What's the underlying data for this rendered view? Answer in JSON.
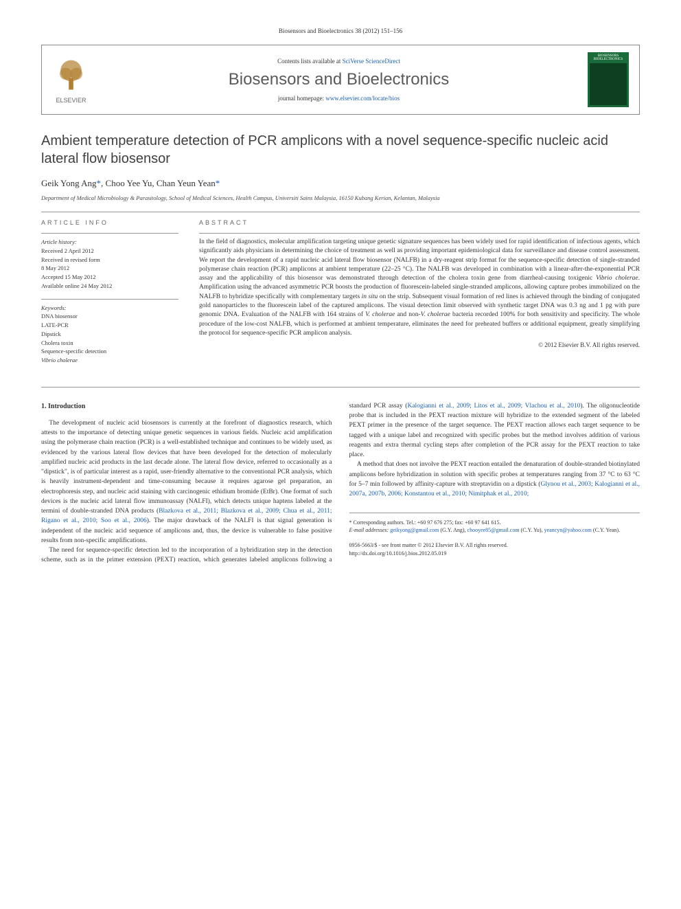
{
  "journal_header": "Biosensors and Bioelectronics 38 (2012) 151–156",
  "header_box": {
    "contents_line_prefix": "Contents lists available at ",
    "contents_link": "SciVerse ScienceDirect",
    "journal_title": "Biosensors and Bioelectronics",
    "homepage_prefix": "journal homepage: ",
    "homepage_link": "www.elsevier.com/locate/bios",
    "elsevier_label": "ELSEVIER",
    "cover_title": "BIOSENSORS BIOELECTRONICS"
  },
  "article": {
    "title": "Ambient temperature detection of PCR amplicons with a novel sequence-specific nucleic acid lateral flow biosensor",
    "authors_html": "Geik Yong Ang<span class='star'>*</span>, Choo Yee Yu, Chan Yeun Yean<span class='star'>*</span>",
    "affiliation": "Department of Medical Microbiology & Parasitology, School of Medical Sciences, Health Campus, Universiti Sains Malaysia, 16150 Kubang Kerian, Kelantan, Malaysia"
  },
  "info": {
    "heading": "ARTICLE INFO",
    "history_label": "Article history:",
    "history": [
      "Received 2 April 2012",
      "Received in revised form",
      "8 May 2012",
      "Accepted 15 May 2012",
      "Available online 24 May 2012"
    ],
    "keywords_label": "Keywords:",
    "keywords": [
      "DNA biosensor",
      "LATE-PCR",
      "Dipstick",
      "Cholera toxin",
      "Sequence-specific detection",
      "Vibrio cholerae"
    ]
  },
  "abstract": {
    "heading": "ABSTRACT",
    "text": "In the field of diagnostics, molecular amplification targeting unique genetic signature sequences has been widely used for rapid identification of infectious agents, which significantly aids physicians in determining the choice of treatment as well as providing important epidemiological data for surveillance and disease control assessment. We report the development of a rapid nucleic acid lateral flow biosensor (NALFB) in a dry-reagent strip format for the sequence-specific detection of single-stranded polymerase chain reaction (PCR) amplicons at ambient temperature (22–25 °C). The NALFB was developed in combination with a linear-after-the-exponential PCR assay and the applicability of this biosensor was demonstrated through detection of the cholera toxin gene from diarrheal-causing toxigenic Vibrio cholerae. Amplification using the advanced asymmetric PCR boosts the production of fluorescein-labeled single-stranded amplicons, allowing capture probes immobilized on the NALFB to hybridize specifically with complementary targets in situ on the strip. Subsequent visual formation of red lines is achieved through the binding of conjugated gold nanoparticles to the fluorescein label of the captured amplicons. The visual detection limit observed with synthetic target DNA was 0.3 ng and 1 pg with pure genomic DNA. Evaluation of the NALFB with 164 strains of V. cholerae and non-V. cholerae bacteria recorded 100% for both sensitivity and specificity. The whole procedure of the low-cost NALFB, which is performed at ambient temperature, eliminates the need for preheated buffers or additional equipment, greatly simplifying the protocol for sequence-specific PCR amplicon analysis.",
    "copyright": "© 2012 Elsevier B.V. All rights reserved."
  },
  "body": {
    "section_heading": "1. Introduction",
    "p1": "The development of nucleic acid biosensors is currently at the forefront of diagnostics research, which attests to the importance of detecting unique genetic sequences in various fields. Nucleic acid amplification using the polymerase chain reaction (PCR) is a well-established technique and continues to be widely used, as evidenced by the various lateral flow devices that have been developed for the detection of molecularly amplified nucleic acid products in the last decade alone. The lateral flow device, referred to occasionally as a \"dipstick\", is of particular interest as a rapid, user-friendly alternative to the conventional PCR analysis, which is heavily instrument-dependent and time-consuming because it requires agarose gel preparation, an electrophoresis step, and nucleic acid staining with carcinogenic ethidium bromide (EtBr). One format of such devices is the nucleic acid lateral flow immunoassay (NALFI), which detects unique haptens labeled at the termini of double-stranded DNA products (",
    "p1_refs": "Blazkova et al., 2011; Blazkova et al., 2009; Chua et al., 2011; Rigano et al., 2010; Soo et al., 2006",
    "p1_end": "). The major drawback of the NALFI is that signal generation is independent of the nucleic acid sequence of amplicons and, thus, the device is vulnerable to false positive results from non-specific amplifications.",
    "p2_start": "The need for sequence-specific detection led to the incorporation of a hybridization step in the detection scheme, such as in the primer extension (PEXT) reaction, which generates labeled amplicons following a standard PCR assay (",
    "p2_refs": "Kalogianni et al., 2009; Litos et al., 2009; Vlachou et al., 2010",
    "p2_end": "). The oligonucleotide probe that is included in the PEXT reaction mixture will hybridize to the extended segment of the labeled PEXT primer in the presence of the target sequence. The PEXT reaction allows each target sequence to be tagged with a unique label and recognized with specific probes but the method involves addition of various reagents and extra thermal cycling steps after completion of the PCR assay for the PEXT reaction to take place.",
    "p3_start": "A method that does not involve the PEXT reaction entailed the denaturation of double-stranded biotinylated amplicons before hybridization in solution with specific probes at temperatures ranging from 37 °C to 63 °C for 5–7 min followed by affinity-capture with streptavidin on a dipstick (",
    "p3_refs": "Glynou et al., 2003; Kalogianni et al., 2007a, 2007b, 2006; Konstantou et al., 2010; Nimitphak et al., 2010;"
  },
  "footer": {
    "corr_label": "* Corresponding authors. Tel.: +60 97 676 275; fax: +60 97 641 615.",
    "email_label": "E-mail addresses: ",
    "emails": "geikyong@gmail.com (G.Y. Ang), chooyee85@gmail.com (C.Y. Yu), yeancyn@yahoo.com (C.Y. Yean).",
    "issn_line": "0956-5663/$ - see front matter © 2012 Elsevier B.V. All rights reserved.",
    "doi_line": "http://dx.doi.org/10.1016/j.bios.2012.05.019"
  },
  "colors": {
    "link": "#1a5fb4",
    "cover_green": "#1a6b3a",
    "text": "#333333"
  }
}
